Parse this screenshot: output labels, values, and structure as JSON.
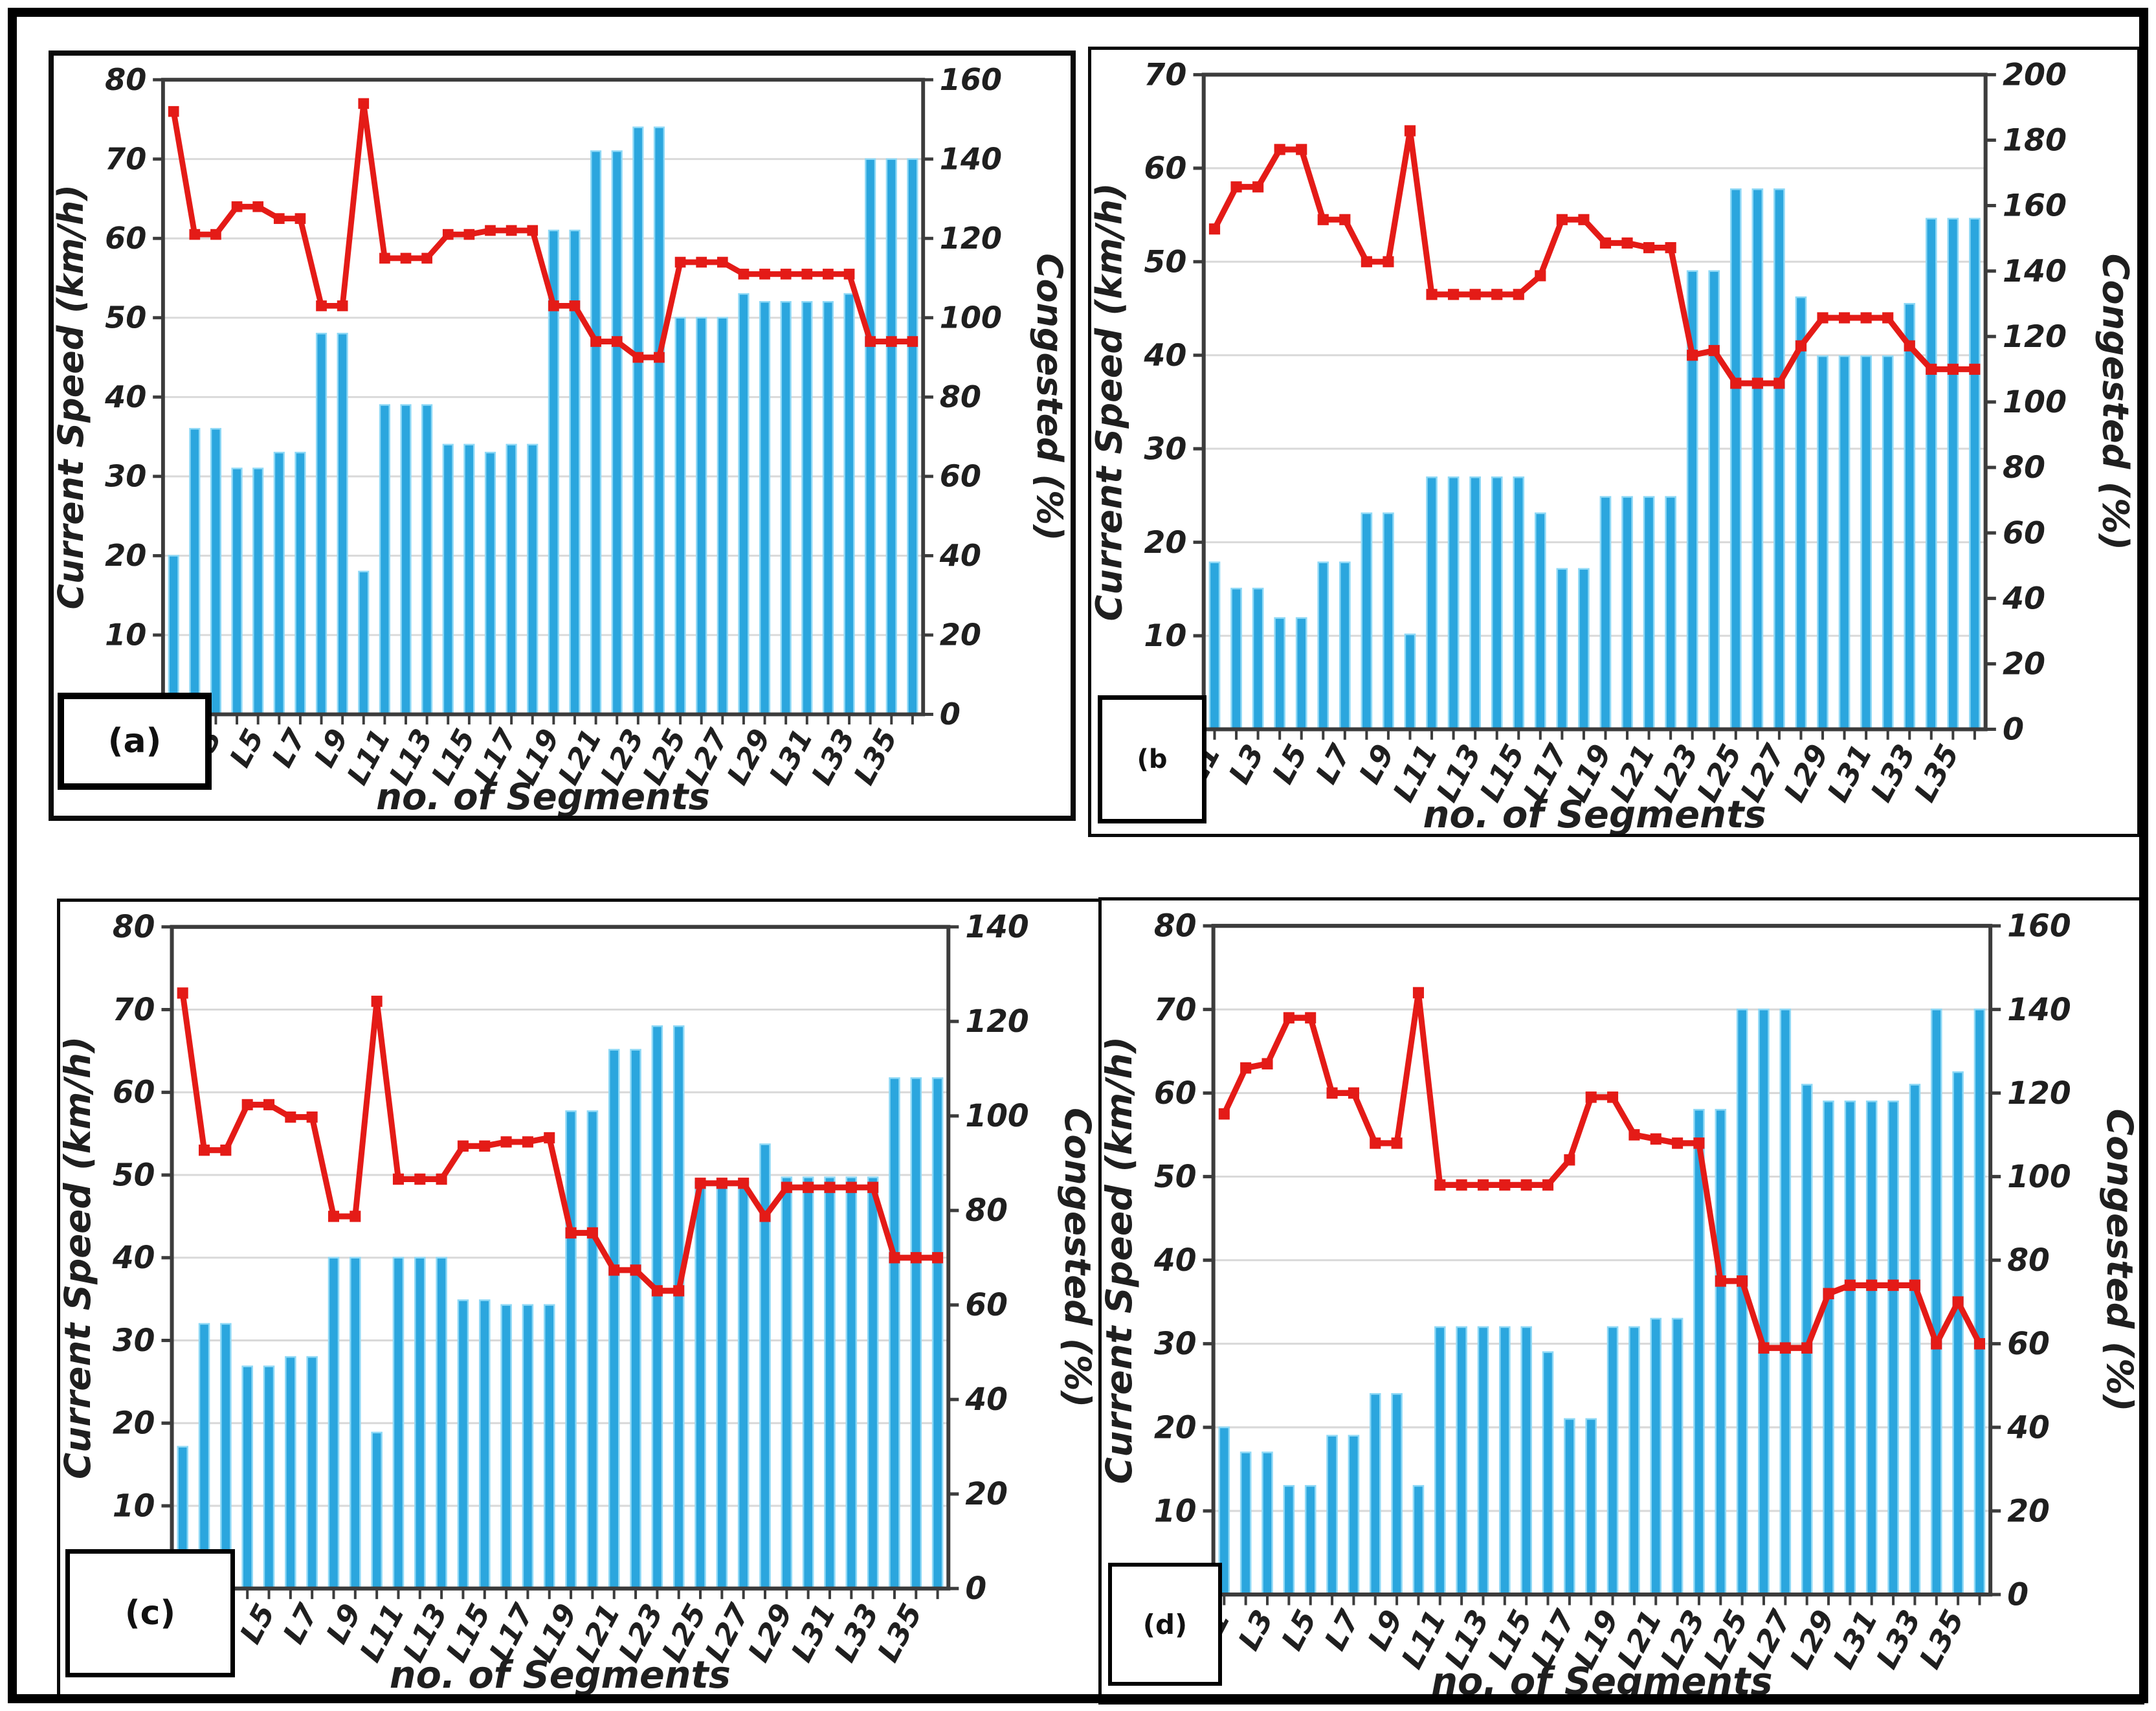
{
  "figure": {
    "x_axis_title": "no. of Segments",
    "left_axis_title": "Current Speed (km/h)",
    "right_axis_title": "Congested (%)",
    "x_tick_labels": [
      "L1",
      "L3",
      "L5",
      "L7",
      "L9",
      "L11",
      "L13",
      "L15",
      "L17",
      "L19",
      "L21",
      "L23",
      "L25",
      "L27",
      "L29",
      "L31",
      "L33",
      "L35"
    ],
    "colors": {
      "bar_fill": "#2BA6DE",
      "bar_edge": "#8FD9F6",
      "line": "#E41B17",
      "grid": "#D9D9D9",
      "axis": "#3C3C3C",
      "text": "#1F1F1F"
    }
  },
  "chart_data": [
    {
      "id": "a",
      "label": "(a)",
      "type": "bar",
      "n_segments": 36,
      "left_ylim": [
        0,
        80
      ],
      "left_step": 10,
      "right_ylim": [
        0,
        160
      ],
      "right_step": 20,
      "series": [
        {
          "name": "Congested (%)",
          "type": "bar",
          "axis": "right",
          "values": [
            40,
            72,
            72,
            62,
            62,
            66,
            66,
            96,
            96,
            36,
            78,
            78,
            78,
            68,
            68,
            66,
            68,
            68,
            122,
            122,
            142,
            142,
            148,
            148,
            100,
            100,
            100,
            106,
            104,
            104,
            104,
            104,
            106,
            140,
            140,
            140
          ]
        },
        {
          "name": "Current Speed (km/h)",
          "type": "line",
          "axis": "left",
          "values": [
            76,
            60.5,
            60.5,
            64,
            64,
            62.5,
            62.5,
            51.5,
            51.5,
            77,
            57.5,
            57.5,
            57.5,
            60.5,
            60.5,
            61,
            61,
            61,
            51.5,
            51.5,
            47,
            47,
            45,
            45,
            57,
            57,
            57,
            55.5,
            55.5,
            55.5,
            55.5,
            55.5,
            55.5,
            47,
            47,
            47
          ]
        }
      ]
    },
    {
      "id": "b",
      "label": "(b",
      "type": "bar",
      "n_segments": 36,
      "left_ylim": [
        0,
        70
      ],
      "left_step": 10,
      "right_ylim": [
        0,
        200
      ],
      "right_step": 20,
      "series": [
        {
          "name": "Congested (%)",
          "type": "bar",
          "axis": "right",
          "values": [
            51,
            43,
            43,
            34,
            34,
            51,
            51,
            66,
            66,
            29,
            77,
            77,
            77,
            77,
            77,
            66,
            49,
            49,
            71,
            71,
            71,
            71,
            140,
            140,
            165,
            165,
            165,
            132,
            114,
            114,
            114,
            114,
            130,
            156,
            156,
            156
          ]
        },
        {
          "name": "Current Speed (km/h)",
          "type": "line",
          "axis": "left",
          "values": [
            53.5,
            58,
            58,
            62,
            62,
            54.5,
            54.5,
            50,
            50,
            64,
            46.5,
            46.5,
            46.5,
            46.5,
            46.5,
            48.5,
            54.5,
            54.5,
            52,
            52,
            51.5,
            51.5,
            40,
            40.5,
            37,
            37,
            37,
            41,
            44,
            44,
            44,
            44,
            41,
            38.5,
            38.5,
            38.5
          ]
        }
      ]
    },
    {
      "id": "c",
      "label": "(c)",
      "type": "bar",
      "n_segments": 36,
      "left_ylim": [
        0,
        80
      ],
      "left_step": 10,
      "right_ylim": [
        0,
        140
      ],
      "right_step": 20,
      "series": [
        {
          "name": "Congested (%)",
          "type": "bar",
          "axis": "right",
          "values": [
            30,
            56,
            56,
            47,
            47,
            49,
            49,
            70,
            70,
            33,
            70,
            70,
            70,
            61,
            61,
            60,
            60,
            60,
            101,
            101,
            114,
            114,
            119,
            119,
            86,
            86,
            86,
            94,
            87,
            87,
            87,
            87,
            87,
            108,
            108,
            108
          ]
        },
        {
          "name": "Current Speed (km/h)",
          "type": "line",
          "axis": "left",
          "values": [
            72,
            53,
            53,
            58.5,
            58.5,
            57,
            57,
            45,
            45,
            71,
            49.5,
            49.5,
            49.5,
            53.5,
            53.5,
            54,
            54,
            54.5,
            43,
            43,
            38.5,
            38.5,
            36,
            36,
            49,
            49,
            49,
            45,
            48.5,
            48.5,
            48.5,
            48.5,
            48.5,
            40,
            40,
            40
          ]
        }
      ]
    },
    {
      "id": "d",
      "label": "(d)",
      "type": "bar",
      "n_segments": 36,
      "left_ylim": [
        0,
        80
      ],
      "left_step": 10,
      "right_ylim": [
        0,
        160
      ],
      "right_step": 20,
      "series": [
        {
          "name": "Congested (%)",
          "type": "bar",
          "axis": "right",
          "values": [
            40,
            34,
            34,
            26,
            26,
            38,
            38,
            48,
            48,
            26,
            64,
            64,
            64,
            64,
            64,
            58,
            42,
            42,
            64,
            64,
            66,
            66,
            116,
            116,
            140,
            140,
            140,
            122,
            118,
            118,
            118,
            118,
            122,
            140,
            125,
            140
          ]
        },
        {
          "name": "Current Speed (km/h)",
          "type": "line",
          "axis": "left",
          "values": [
            57.5,
            63,
            63.5,
            69,
            69,
            60,
            60,
            54,
            54,
            72,
            49,
            49,
            49,
            49,
            49,
            49,
            52,
            59.5,
            59.5,
            55,
            54.5,
            54,
            54,
            37.5,
            37.5,
            29.5,
            29.5,
            29.5,
            36,
            37,
            37,
            37,
            37,
            30,
            35,
            30
          ]
        }
      ]
    }
  ]
}
